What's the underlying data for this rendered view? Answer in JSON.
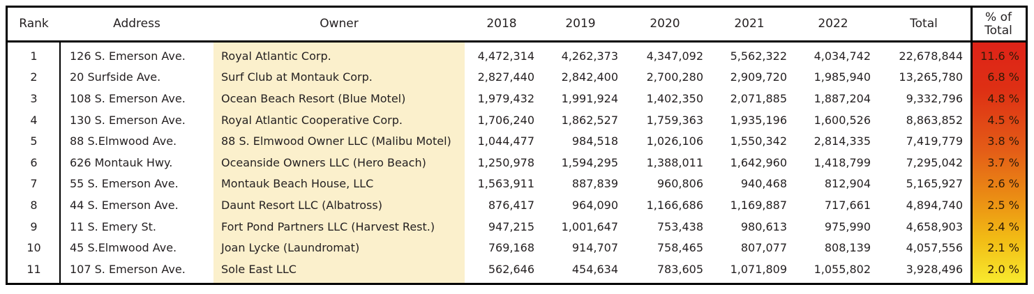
{
  "table": {
    "headers": {
      "rank": "Rank",
      "address": "Address",
      "owner": "Owner",
      "y2018": "2018",
      "y2019": "2019",
      "y2020": "2020",
      "y2021": "2021",
      "y2022": "2022",
      "total": "Total",
      "pct_line1": "% of",
      "pct_line2": "Total"
    },
    "rows": [
      {
        "rank": "1",
        "address": "126 S. Emerson Ave.",
        "owner": "Royal Atlantic Corp.",
        "y2018": "4,472,314",
        "y2019": "4,262,373",
        "y2020": "4,347,092",
        "y2021": "5,562,322",
        "y2022": "4,034,742",
        "total": "22,678,844",
        "pct": "11.6 %"
      },
      {
        "rank": "2",
        "address": "20 Surfside Ave.",
        "owner": "Surf Club at Montauk Corp.",
        "y2018": "2,827,440",
        "y2019": "2,842,400",
        "y2020": "2,700,280",
        "y2021": "2,909,720",
        "y2022": "1,985,940",
        "total": "13,265,780",
        "pct": "6.8 %"
      },
      {
        "rank": "3",
        "address": "108 S. Emerson Ave.",
        "owner": "Ocean Beach Resort (Blue Motel)",
        "y2018": "1,979,432",
        "y2019": "1,991,924",
        "y2020": "1,402,350",
        "y2021": "2,071,885",
        "y2022": "1,887,204",
        "total": "9,332,796",
        "pct": "4.8 %"
      },
      {
        "rank": "4",
        "address": "130 S. Emerson Ave.",
        "owner": "Royal Atlantic Cooperative Corp.",
        "y2018": "1,706,240",
        "y2019": "1,862,527",
        "y2020": "1,759,363",
        "y2021": "1,935,196",
        "y2022": "1,600,526",
        "total": "8,863,852",
        "pct": "4.5 %"
      },
      {
        "rank": "5",
        "address": "88  S.Elmwood Ave.",
        "owner": "88 S. Elmwood Owner LLC (Malibu Motel)",
        "y2018": "1,044,477",
        "y2019": "984,518",
        "y2020": "1,026,106",
        "y2021": "1,550,342",
        "y2022": "2,814,335",
        "total": "7,419,779",
        "pct": "3.8 %"
      },
      {
        "rank": "6",
        "address": "626 Montauk Hwy.",
        "owner": "Oceanside Owners LLC (Hero Beach)",
        "y2018": "1,250,978",
        "y2019": "1,594,295",
        "y2020": "1,388,011",
        "y2021": "1,642,960",
        "y2022": "1,418,799",
        "total": "7,295,042",
        "pct": "3.7 %"
      },
      {
        "rank": "7",
        "address": "55 S. Emerson Ave.",
        "owner": "Montauk Beach House, LLC",
        "y2018": "1,563,911",
        "y2019": "887,839",
        "y2020": "960,806",
        "y2021": "940,468",
        "y2022": "812,904",
        "total": "5,165,927",
        "pct": "2.6 %"
      },
      {
        "rank": "8",
        "address": "44 S. Emerson Ave.",
        "owner": "Daunt Resort LLC (Albatross)",
        "y2018": "876,417",
        "y2019": "964,090",
        "y2020": "1,166,686",
        "y2021": "1,169,887",
        "y2022": "717,661",
        "total": "4,894,740",
        "pct": "2.5 %"
      },
      {
        "rank": "9",
        "address": "11 S. Emery St.",
        "owner": "Fort Pond Partners LLC (Harvest Rest.)",
        "y2018": "947,215",
        "y2019": "1,001,647",
        "y2020": "753,438",
        "y2021": "980,613",
        "y2022": "975,990",
        "total": "4,658,903",
        "pct": "2.4 %"
      },
      {
        "rank": "10",
        "address": "45 S.Elmwood Ave.",
        "owner": "Joan Lycke (Laundromat)",
        "y2018": "769,168",
        "y2019": "914,707",
        "y2020": "758,465",
        "y2021": "807,077",
        "y2022": "808,139",
        "total": "4,057,556",
        "pct": "2.1 %"
      },
      {
        "rank": "11",
        "address": "107 S. Emerson Ave.",
        "owner": "Sole East LLC",
        "y2018": "562,646",
        "y2019": "454,634",
        "y2020": "783,605",
        "y2021": "1,071,809",
        "y2022": "1,055,802",
        "total": "3,928,496",
        "pct": "2.0 %"
      }
    ],
    "colors": {
      "border": "#000000",
      "owner_column_bg": "#FBF0CC",
      "pct_gradient_top": "#DE2318",
      "pct_gradient_red": "#DE3014",
      "pct_gradient_orange": "#E45D17",
      "pct_gradient_amber": "#EB8E14",
      "pct_gradient_gold": "#F2BC15",
      "pct_gradient_bottom": "#F8EA2E"
    }
  }
}
